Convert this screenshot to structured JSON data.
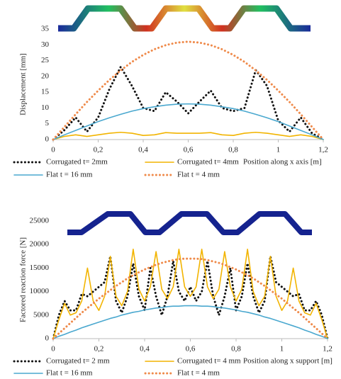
{
  "chart_data": [
    {
      "type": "line",
      "y_label": "Displacement [mm]",
      "x_label": "Position along x axis [m]",
      "xlim": [
        0,
        1.2
      ],
      "ylim": [
        0,
        35
      ],
      "xticks": [
        0,
        {
          "value": 0.2,
          "label": "0,2"
        },
        {
          "value": 0.4,
          "label": "0,4"
        },
        {
          "value": 0.6,
          "label": "0,6"
        },
        {
          "value": 0.8,
          "label": "0,8"
        },
        {
          "value": 1,
          "label": "1"
        },
        {
          "value": 1.2,
          "label": "1,2"
        }
      ],
      "yticks": [
        0,
        5,
        10,
        15,
        20,
        25,
        30,
        35
      ],
      "grid": false,
      "x": [
        0,
        0.05,
        0.1,
        0.15,
        0.2,
        0.25,
        0.3,
        0.35,
        0.4,
        0.45,
        0.5,
        0.55,
        0.6,
        0.65,
        0.7,
        0.75,
        0.8,
        0.85,
        0.9,
        0.95,
        1,
        1.05,
        1.1,
        1.15,
        1.2
      ],
      "series": [
        {
          "name": "Corrugated t= 2mm",
          "color": "#111111",
          "line_style": "dotted",
          "values": [
            0,
            3,
            7,
            2.5,
            7,
            16,
            23,
            17,
            10,
            9,
            15,
            12,
            8.3,
            12,
            15.5,
            10,
            9,
            10,
            22,
            17,
            6,
            2.5,
            7,
            2,
            0
          ]
        },
        {
          "name": "Corrugated t= 4mm",
          "color": "#f2b400",
          "line_style": "solid",
          "values": [
            0,
            1,
            1.5,
            1,
            1.5,
            2,
            2.3,
            2,
            1.3,
            1.5,
            2.2,
            2,
            2,
            2,
            2.2,
            1.5,
            1.3,
            2,
            2.3,
            2,
            1.5,
            1,
            1.5,
            1,
            0
          ]
        },
        {
          "name": "Flat t = 16 mm",
          "color": "#4aa8cf",
          "line_style": "solid",
          "values": [
            0,
            1.5,
            2.9,
            4.3,
            5.7,
            6.9,
            8,
            9,
            9.8,
            10.4,
            10.9,
            11.2,
            11.3,
            11.2,
            10.9,
            10.4,
            9.8,
            9,
            8,
            6.9,
            5.7,
            4.3,
            2.9,
            1.5,
            0
          ]
        },
        {
          "name": "Flat t = 4 mm",
          "color": "#ef8a4a",
          "line_style": "dotted",
          "values": [
            0,
            4,
            8,
            11.9,
            15.5,
            18.9,
            21.9,
            24.6,
            26.8,
            28.6,
            29.9,
            30.7,
            31,
            30.7,
            29.9,
            28.6,
            26.8,
            24.6,
            21.9,
            18.9,
            15.5,
            11.9,
            8,
            4,
            0
          ]
        }
      ]
    },
    {
      "type": "line",
      "y_label": "Factored reaction force [N]",
      "x_label": "Position along x support  [m]",
      "xlim": [
        0,
        1.2
      ],
      "ylim": [
        0,
        25000
      ],
      "xticks": [
        0,
        {
          "value": 0.2,
          "label": "0,2"
        },
        {
          "value": 0.4,
          "label": "0,4"
        },
        {
          "value": 0.6,
          "label": "0,6"
        },
        {
          "value": 0.8,
          "label": "0,8"
        },
        {
          "value": 1,
          "label": "1"
        },
        {
          "value": 1.2,
          "label": "1,2"
        }
      ],
      "yticks": [
        0,
        5000,
        10000,
        15000,
        20000,
        25000
      ],
      "grid": false,
      "x": [
        0,
        0.025,
        0.05,
        0.075,
        0.1,
        0.125,
        0.15,
        0.175,
        0.2,
        0.225,
        0.25,
        0.275,
        0.3,
        0.325,
        0.35,
        0.375,
        0.4,
        0.425,
        0.45,
        0.475,
        0.5,
        0.525,
        0.55,
        0.575,
        0.6,
        0.625,
        0.65,
        0.675,
        0.7,
        0.725,
        0.75,
        0.775,
        0.8,
        0.825,
        0.85,
        0.875,
        0.9,
        0.925,
        0.95,
        0.975,
        1,
        1.025,
        1.05,
        1.075,
        1.1,
        1.125,
        1.15,
        1.175,
        1.2
      ],
      "series": [
        {
          "name": "Corrugated t= 2 mm",
          "color": "#111111",
          "line_style": "dotted",
          "values": [
            0,
            5000,
            8000,
            6000,
            6000,
            9500,
            9000,
            10000,
            11000,
            12000,
            17500,
            8000,
            5500,
            9000,
            16000,
            9000,
            6000,
            15000,
            9000,
            5000,
            9000,
            16500,
            10000,
            8000,
            11000,
            8000,
            10000,
            16500,
            9000,
            5000,
            9000,
            15000,
            6000,
            9000,
            16000,
            9000,
            5500,
            8000,
            17500,
            12000,
            11000,
            10000,
            9000,
            9500,
            6000,
            6000,
            8000,
            5000,
            0
          ]
        },
        {
          "name": "Corrugated t= 4 mm",
          "color": "#f2b400",
          "line_style": "solid",
          "values": [
            0,
            4000,
            7500,
            5000,
            5500,
            8000,
            15000,
            8000,
            6000,
            9000,
            17500,
            9000,
            7000,
            10000,
            19000,
            10500,
            8000,
            11000,
            18500,
            10500,
            8500,
            11000,
            19000,
            11000,
            9000,
            11000,
            19000,
            11000,
            8500,
            10500,
            18500,
            11000,
            8000,
            10500,
            19000,
            10000,
            7000,
            9000,
            17500,
            9000,
            6000,
            8000,
            15000,
            8000,
            5500,
            5000,
            7500,
            4000,
            0
          ]
        },
        {
          "name": "Flat t = 16 mm",
          "color": "#4aa8cf",
          "line_style": "solid",
          "values": [
            0,
            500,
            900,
            1400,
            1800,
            2300,
            2700,
            3100,
            3500,
            3900,
            4300,
            4600,
            5000,
            5300,
            5600,
            5800,
            6100,
            6300,
            6500,
            6600,
            6800,
            6900,
            6900,
            7000,
            7000,
            7000,
            6900,
            6900,
            6800,
            6600,
            6500,
            6300,
            6100,
            5800,
            5600,
            5300,
            5000,
            4600,
            4300,
            3900,
            3500,
            3100,
            2700,
            2300,
            1800,
            1400,
            900,
            500,
            0
          ]
        },
        {
          "name": "Flat t = 4 mm",
          "color": "#ef8a4a",
          "line_style": "dotted",
          "values": [
            0,
            1100,
            2200,
            3300,
            4400,
            5500,
            6500,
            7500,
            8500,
            9400,
            10300,
            11200,
            12000,
            12800,
            13500,
            14100,
            14700,
            15200,
            15700,
            16100,
            16400,
            16700,
            16900,
            17000,
            17000,
            17000,
            16900,
            16700,
            16400,
            16100,
            15700,
            15200,
            14700,
            14100,
            13500,
            12800,
            12000,
            11200,
            10300,
            9400,
            8500,
            7500,
            6500,
            5500,
            4400,
            3300,
            2200,
            1100,
            0
          ]
        }
      ]
    }
  ]
}
